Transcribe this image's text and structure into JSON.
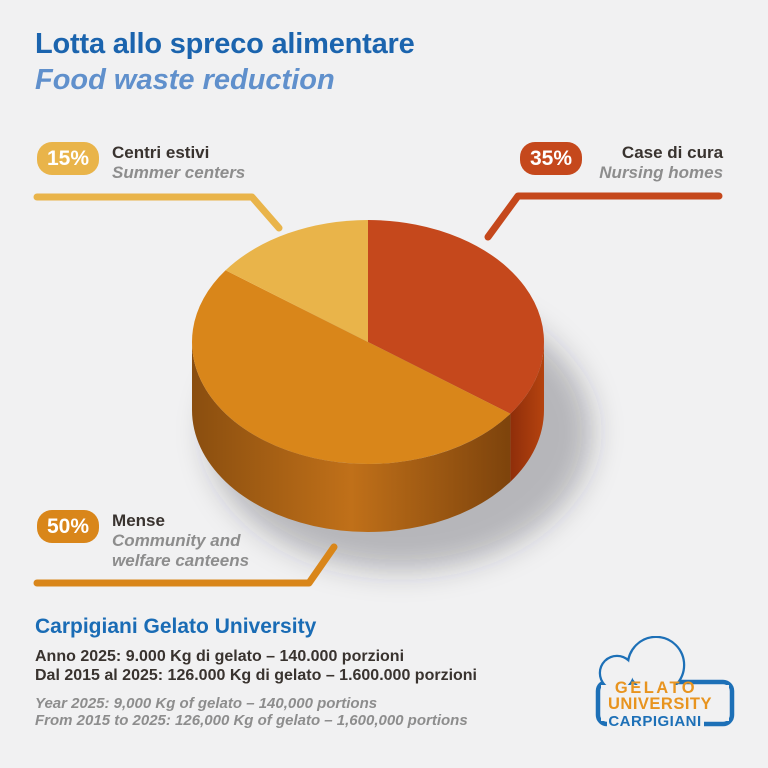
{
  "header": {
    "title_it": "Lotta allo spreco alimentare",
    "title_en": "Food waste reduction"
  },
  "chart_data": {
    "type": "pie",
    "style": "3d",
    "title": "Lotta allo spreco alimentare / Food waste reduction",
    "start_angle_deg": 0,
    "direction": "clockwise",
    "slices": [
      {
        "id": "nursing-homes",
        "label_it": "Case di cura",
        "label_en": "Nursing homes",
        "value": 35,
        "pct": "35%",
        "color": "#c5481c",
        "side_stops": [
          "#8f2e0a",
          "#b5430f"
        ]
      },
      {
        "id": "canteens",
        "label_it": "Mense",
        "label_en": "Community and welfare canteens",
        "value": 50,
        "pct": "50%",
        "color": "#d9861a",
        "side_stops": [
          "#8a4e0f",
          "#c07019",
          "#7d430c"
        ]
      },
      {
        "id": "summer-centers",
        "label_it": "Centri estivi",
        "label_en": "Summer centers",
        "value": 15,
        "pct": "15%",
        "color": "#e9b44a",
        "side_stops": []
      }
    ]
  },
  "footer": {
    "title": "Carpigiani Gelato University",
    "line1_it": "Anno 2025: 9.000 Kg di gelato – 140.000 porzioni",
    "line2_it": "Dal 2015 al 2025: 126.000 Kg di gelato – 1.600.000 porzioni",
    "line1_en": "Year 2025: 9,000 Kg of gelato – 140,000 portions",
    "line2_en": "From 2015 to 2025: 126,000 Kg of gelato – 1,600,000 portions"
  },
  "logo": {
    "line1": "GELATO",
    "line2": "UNIVERSITY",
    "line3": "CARPIGIANI"
  },
  "colors": {
    "background": "#f1f1f2",
    "title": "#1b64ae",
    "subtitle": "#6090cc",
    "text_dark": "#39332f",
    "text_gray": "#8d8d8d",
    "footer_title": "#1a6cb5",
    "logo_blue": "#1d70b7",
    "logo_orange": "#e8941f"
  }
}
